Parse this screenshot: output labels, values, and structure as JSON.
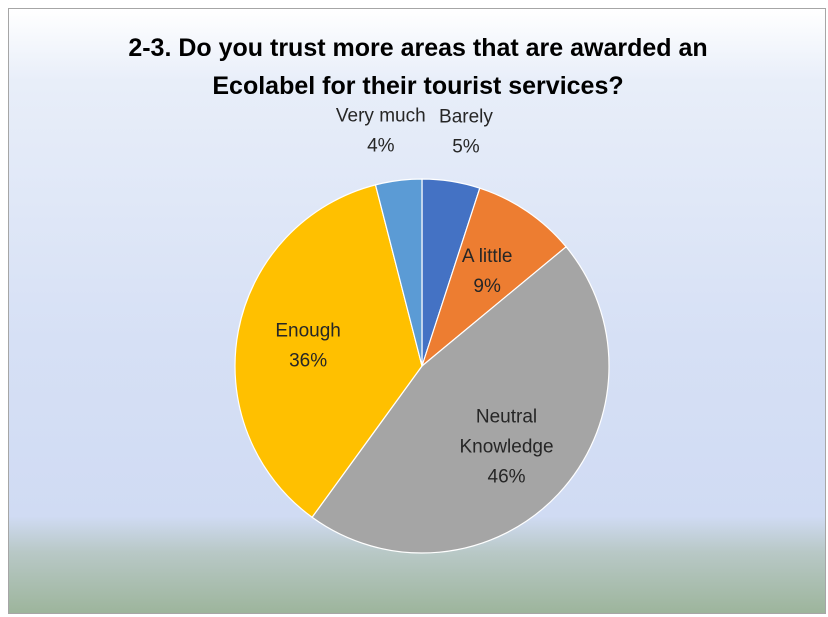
{
  "chart_data": {
    "type": "pie",
    "title": "2-3. Do you trust more areas that are awarded an Ecolabel for their tourist services?",
    "title_lines": [
      "2-3. Do you trust more areas that are awarded an",
      "Ecolabel for their tourist services?"
    ],
    "start_angle_deg": 0,
    "direction": "clockwise",
    "slices": [
      {
        "label": "Barely",
        "label_lines": [
          "Barely"
        ],
        "value": 5,
        "value_label": "5%",
        "color": "#4472c4",
        "label_outside": true
      },
      {
        "label": "A little",
        "label_lines": [
          "A little"
        ],
        "value": 9,
        "value_label": "9%",
        "color": "#ed7d31",
        "label_outside": false
      },
      {
        "label": "Neutral Knowledge",
        "label_lines": [
          "Neutral",
          "Knowledge"
        ],
        "value": 46,
        "value_label": "46%",
        "color": "#a5a5a5",
        "label_outside": false
      },
      {
        "label": "Enough",
        "label_lines": [
          "Enough"
        ],
        "value": 36,
        "value_label": "36%",
        "color": "#ffc000",
        "label_outside": false
      },
      {
        "label": "Very much",
        "label_lines": [
          "Very much"
        ],
        "value": 4,
        "value_label": "4%",
        "color": "#5b9bd5",
        "label_outside": true
      }
    ],
    "legend": "none"
  }
}
